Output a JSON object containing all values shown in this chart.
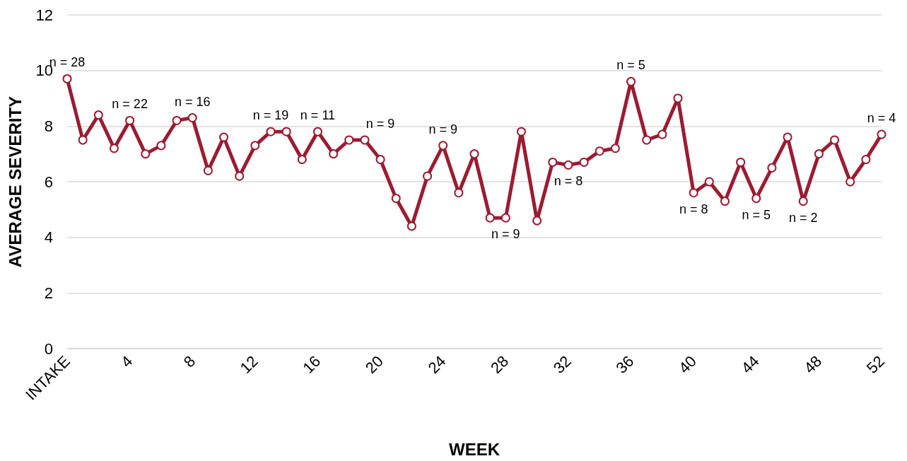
{
  "chart_data": {
    "type": "line",
    "xlabel": "WEEK",
    "ylabel": "AVERAGE SEVERITY",
    "x": [
      0,
      1,
      2,
      3,
      4,
      5,
      6,
      7,
      8,
      9,
      10,
      11,
      12,
      13,
      14,
      15,
      16,
      17,
      18,
      19,
      20,
      21,
      22,
      23,
      24,
      25,
      26,
      27,
      28,
      29,
      30,
      31,
      32,
      33,
      34,
      35,
      36,
      37,
      38,
      39,
      40,
      41,
      42,
      43,
      44,
      45,
      46,
      47,
      48,
      49,
      50,
      51,
      52
    ],
    "series": [
      {
        "color": "#9b1c31",
        "values": [
          9.7,
          7.5,
          8.4,
          7.2,
          8.2,
          7.0,
          7.3,
          8.2,
          8.3,
          6.4,
          7.6,
          6.2,
          7.3,
          7.8,
          7.8,
          6.8,
          7.8,
          7.0,
          7.5,
          7.5,
          6.8,
          5.4,
          4.4,
          6.2,
          7.3,
          5.6,
          7.0,
          4.7,
          4.7,
          7.8,
          4.6,
          6.7,
          6.6,
          6.7,
          7.1,
          7.2,
          9.6,
          7.5,
          7.7,
          9.0,
          5.6,
          6.0,
          5.3,
          6.7,
          5.4,
          6.5,
          7.6,
          5.3,
          7.0,
          7.5,
          6.0,
          6.8,
          7.7
        ]
      }
    ],
    "xlim": [
      0,
      52
    ],
    "xticks": [
      {
        "value": 0,
        "label": "INTAKE"
      },
      4,
      8,
      12,
      16,
      20,
      24,
      28,
      32,
      36,
      40,
      44,
      48,
      52
    ],
    "ylim": [
      0,
      12
    ],
    "yticks": [
      0,
      2,
      4,
      6,
      8,
      10,
      12
    ],
    "grid": "y",
    "marker": "circle",
    "line_style": "solid",
    "annotations": [
      {
        "text": "n = 28",
        "x": 0,
        "y": 9.7
      },
      {
        "text": "n = 22",
        "x": 4,
        "y": 8.2
      },
      {
        "text": "n = 16",
        "x": 8,
        "y": 8.3
      },
      {
        "text": "n = 19",
        "x": 13,
        "y": 7.8
      },
      {
        "text": "n = 11",
        "x": 16,
        "y": 7.8
      },
      {
        "text": "n = 9",
        "x": 20,
        "y": 6.8
      },
      {
        "text": "n = 9",
        "x": 24,
        "y": 7.3
      },
      {
        "text": "n = 9",
        "x": 28,
        "y": 4.7
      },
      {
        "text": "n = 8",
        "x": 32,
        "y": 6.6
      },
      {
        "text": "n = 5",
        "x": 36,
        "y": 9.6
      },
      {
        "text": "n = 8",
        "x": 40,
        "y": 5.6
      },
      {
        "text": "n = 5",
        "x": 44,
        "y": 5.4
      },
      {
        "text": "n = 2",
        "x": 47,
        "y": 5.3
      },
      {
        "text": "n = 4",
        "x": 52,
        "y": 7.7
      }
    ]
  }
}
